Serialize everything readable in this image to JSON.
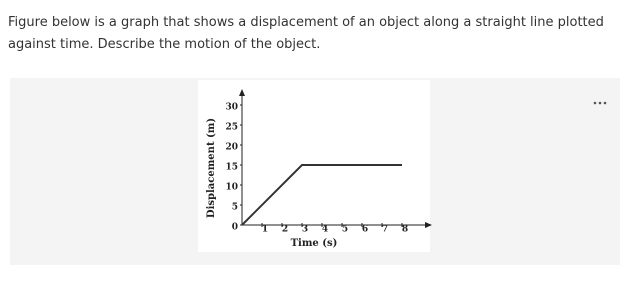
{
  "question": {
    "lines": [
      "Figure below is a graph that shows a displacement of an object along a straight line plotted",
      "against time. Describe the motion of the object."
    ]
  },
  "chart_data": {
    "type": "line",
    "x_label": "Time (s)",
    "y_label": "Displacement (m)",
    "x": [
      0,
      3,
      8
    ],
    "values": [
      0,
      15,
      15
    ],
    "color": "#333333",
    "xlim": [
      0,
      9.5
    ],
    "ylim": [
      0,
      34
    ],
    "xticks": [
      1,
      2,
      3,
      4,
      5,
      6,
      7,
      8
    ],
    "yticks": [
      0,
      5,
      10,
      15,
      20,
      25,
      30
    ]
  }
}
